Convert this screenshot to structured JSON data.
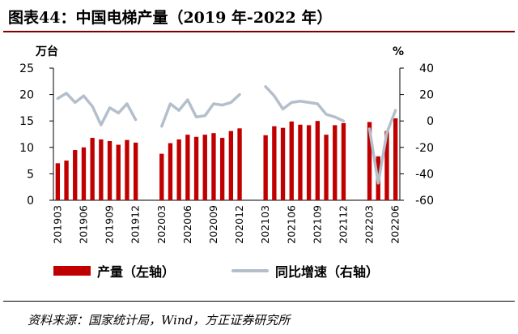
{
  "header": {
    "title": "图表44：中国电梯产量（2019 年-2022 年）"
  },
  "legend": {
    "bar_label": "产量（左轴）",
    "line_label": "同比增速（右轴）"
  },
  "footer": {
    "source": "资料来源：国家统计局，Wind，方正证券研究所"
  },
  "colors": {
    "bar": "#c00000",
    "line": "#b4bfcc",
    "title_rule": "#7f0000"
  },
  "chart_data": {
    "type": "bar",
    "left_unit": "万台",
    "right_unit": "%",
    "ylim_left": [
      0,
      25
    ],
    "yticks_left": [
      0,
      5,
      10,
      15,
      20,
      25
    ],
    "ylim_right": [
      -60,
      40
    ],
    "yticks_right": [
      -60,
      -40,
      -20,
      0,
      20,
      40
    ],
    "grid": false,
    "legend_position": "bottom",
    "x": [
      "201903",
      "201904",
      "201905",
      "201906",
      "201907",
      "201908",
      "201909",
      "201910",
      "201911",
      "201912",
      "202001",
      "202002",
      "202003",
      "202004",
      "202005",
      "202006",
      "202007",
      "202008",
      "202009",
      "202010",
      "202011",
      "202012",
      "202101",
      "202102",
      "202103",
      "202104",
      "202105",
      "202106",
      "202107",
      "202108",
      "202109",
      "202110",
      "202111",
      "202112",
      "202201",
      "202202",
      "202203",
      "202204",
      "202205",
      "202206"
    ],
    "x_tick_labels": [
      "201903",
      "201906",
      "201909",
      "201912",
      "202003",
      "202006",
      "202009",
      "202012",
      "202103",
      "202106",
      "202109",
      "202112",
      "202203",
      "202206"
    ],
    "series": [
      {
        "name": "产量（左轴）",
        "type": "bar",
        "axis": "left",
        "values": [
          7.0,
          7.5,
          9.5,
          10.0,
          11.8,
          11.5,
          11.2,
          10.5,
          11.4,
          10.9,
          null,
          null,
          8.8,
          10.8,
          11.5,
          12.4,
          12.0,
          12.4,
          12.7,
          11.8,
          13.1,
          13.6,
          null,
          null,
          12.3,
          14.0,
          13.7,
          14.9,
          14.3,
          14.2,
          15.0,
          12.4,
          14.2,
          14.6,
          null,
          null,
          14.8,
          8.3,
          13.1,
          15.5
        ]
      },
      {
        "name": "同比增速（右轴）",
        "type": "line",
        "axis": "right",
        "values": [
          17,
          21,
          14,
          19,
          11,
          -3,
          10,
          6,
          13,
          1,
          null,
          null,
          -4,
          13,
          8,
          16,
          3,
          4,
          13,
          12,
          14,
          20,
          null,
          null,
          26,
          19,
          9,
          14,
          15,
          14,
          13,
          5,
          3,
          0,
          null,
          null,
          -6,
          -47,
          -9,
          8
        ]
      }
    ]
  }
}
